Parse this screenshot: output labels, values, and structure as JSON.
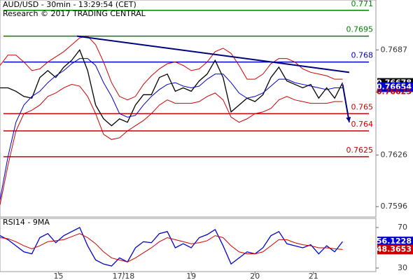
{
  "chart_data": [
    {
      "type": "line",
      "title": "AUD/USD - 30min - 13:29:54 (CET)",
      "subtitle": "Research © 2017 TRADING CENTRAL",
      "x": [
        0,
        6,
        12,
        18,
        24,
        30,
        36,
        42,
        48,
        54,
        60,
        66,
        72,
        78,
        84,
        90,
        96,
        102,
        108,
        114,
        120,
        126,
        132,
        138,
        144,
        150,
        156,
        162,
        168,
        174,
        180,
        186,
        192,
        198,
        204,
        210,
        216,
        222,
        228,
        234,
        240,
        246,
        252,
        258
      ],
      "xlim": [
        0,
        282
      ],
      "ylim": [
        0.759,
        0.7716
      ],
      "yticks": [
        0.7687,
        0.7626,
        0.7596
      ],
      "series": [
        {
          "name": "Price",
          "color": "#000000",
          "values": [
            0.7665,
            0.7665,
            0.7663,
            0.766,
            0.7659,
            0.7671,
            0.7675,
            0.7671,
            0.7677,
            0.7681,
            0.7687,
            0.7675,
            0.7655,
            0.7647,
            0.7643,
            0.7647,
            0.7645,
            0.7655,
            0.7661,
            0.7661,
            0.7671,
            0.7673,
            0.7663,
            0.7665,
            0.7663,
            0.7669,
            0.7673,
            0.7681,
            0.7671,
            0.7651,
            0.7655,
            0.7659,
            0.7657,
            0.7661,
            0.7671,
            0.7677,
            0.7669,
            0.7667,
            0.7665,
            0.7667,
            0.7659,
            0.7665,
            0.7659,
            0.7668
          ]
        },
        {
          "name": "Upper band",
          "color": "#cc0000",
          "values": [
            0.7678,
            0.7684,
            0.7684,
            0.768,
            0.7675,
            0.7676,
            0.768,
            0.7683,
            0.7686,
            0.769,
            0.7694,
            0.7695,
            0.769,
            0.768,
            0.7668,
            0.766,
            0.7658,
            0.766,
            0.7667,
            0.7672,
            0.7676,
            0.7679,
            0.768,
            0.7678,
            0.7675,
            0.7676,
            0.768,
            0.7686,
            0.7688,
            0.7685,
            0.7678,
            0.767,
            0.767,
            0.7673,
            0.7679,
            0.7682,
            0.7682,
            0.768,
            0.7676,
            0.7674,
            0.7673,
            0.7672,
            0.767,
            0.767
          ]
        },
        {
          "name": "Lower band",
          "color": "#cc0000",
          "values": [
            0.7597,
            0.762,
            0.764,
            0.765,
            0.7652,
            0.7655,
            0.766,
            0.7662,
            0.7665,
            0.7667,
            0.7666,
            0.766,
            0.765,
            0.7638,
            0.7635,
            0.7636,
            0.764,
            0.7643,
            0.7646,
            0.765,
            0.7655,
            0.7658,
            0.7656,
            0.7656,
            0.7656,
            0.7657,
            0.766,
            0.7662,
            0.7658,
            0.7648,
            0.7645,
            0.7647,
            0.765,
            0.7651,
            0.7653,
            0.7658,
            0.766,
            0.7658,
            0.7657,
            0.7656,
            0.7656,
            0.7656,
            0.7657,
            0.7657
          ]
        },
        {
          "name": "Moving average",
          "color": "#0000cc",
          "values": [
            0.76,
            0.7625,
            0.7645,
            0.7655,
            0.766,
            0.7663,
            0.7668,
            0.7672,
            0.7675,
            0.7679,
            0.7682,
            0.7682,
            0.7678,
            0.7668,
            0.766,
            0.765,
            0.7648,
            0.7649,
            0.7655,
            0.766,
            0.7664,
            0.7667,
            0.7668,
            0.7666,
            0.7665,
            0.7666,
            0.767,
            0.7673,
            0.7673,
            0.7668,
            0.7662,
            0.7659,
            0.766,
            0.7662,
            0.7666,
            0.767,
            0.767,
            0.7668,
            0.7667,
            0.7666,
            0.7665,
            0.7664,
            0.7665,
            0.7665
          ]
        }
      ],
      "levels": [
        {
          "value": 0.771,
          "color": "#008000"
        },
        {
          "value": 0.7695,
          "color": "#008000"
        },
        {
          "value": 0.768,
          "color": "#0000cc"
        },
        {
          "value": 0.765,
          "color": "#cc0000"
        },
        {
          "value": 0.764,
          "color": "#cc0000"
        },
        {
          "value": 0.7625,
          "color": "#cc0000"
        }
      ],
      "trendline": {
        "x": [
          58,
          263
        ],
        "values": [
          0.7695,
          0.7674
        ],
        "color": "#000080"
      },
      "arrow": {
        "x": [
          258,
          263
        ],
        "values": [
          0.7667,
          0.7645
        ],
        "color": "#000080"
      },
      "last_values": [
        {
          "value": 0.76678,
          "color": "#000000"
        },
        {
          "value": 0.76654,
          "color": "#0000cc"
        },
        {
          "value": 0.76625,
          "color": "#cc0000"
        }
      ]
    },
    {
      "type": "line",
      "title": "RSI14 - 9MA",
      "x": [
        0,
        6,
        12,
        18,
        24,
        30,
        36,
        42,
        48,
        54,
        60,
        66,
        72,
        78,
        84,
        90,
        96,
        102,
        108,
        114,
        120,
        126,
        132,
        138,
        144,
        150,
        156,
        162,
        168,
        174,
        180,
        186,
        192,
        198,
        204,
        210,
        216,
        222,
        228,
        234,
        240,
        246,
        252,
        258
      ],
      "xlim": [
        0,
        282
      ],
      "xticks": [
        {
          "value": 44,
          "label": "15"
        },
        {
          "value": 93,
          "label": "17/18"
        },
        {
          "value": 144,
          "label": "19"
        },
        {
          "value": 192,
          "label": "20"
        },
        {
          "value": 236,
          "label": "21"
        }
      ],
      "ylim": [
        26.5,
        79
      ],
      "yticks": [
        70,
        30
      ],
      "series": [
        {
          "name": "RSI",
          "color": "#0000cc",
          "values": [
            62,
            58,
            52,
            46,
            44,
            60,
            64,
            55,
            62,
            66,
            70,
            52,
            38,
            34,
            32,
            40,
            36,
            50,
            56,
            55,
            64,
            66,
            50,
            54,
            50,
            60,
            63,
            68,
            52,
            34,
            40,
            46,
            44,
            50,
            62,
            66,
            54,
            52,
            50,
            53,
            44,
            52,
            46,
            56.1228
          ]
        },
        {
          "name": "RSI MA",
          "color": "#cc0000",
          "values": [
            60,
            59,
            56,
            52,
            49,
            52,
            56,
            57,
            58,
            61,
            64,
            60,
            54,
            46,
            40,
            38,
            36,
            40,
            45,
            50,
            56,
            60,
            58,
            56,
            54,
            55,
            57,
            62,
            60,
            52,
            46,
            44,
            44,
            46,
            52,
            58,
            58,
            55,
            53,
            52,
            50,
            50,
            49,
            48.3653
          ]
        }
      ],
      "last_values": [
        {
          "value": 56.1228,
          "color": "#0000cc"
        },
        {
          "value": 48.3653,
          "color": "#cc0000"
        }
      ]
    }
  ]
}
